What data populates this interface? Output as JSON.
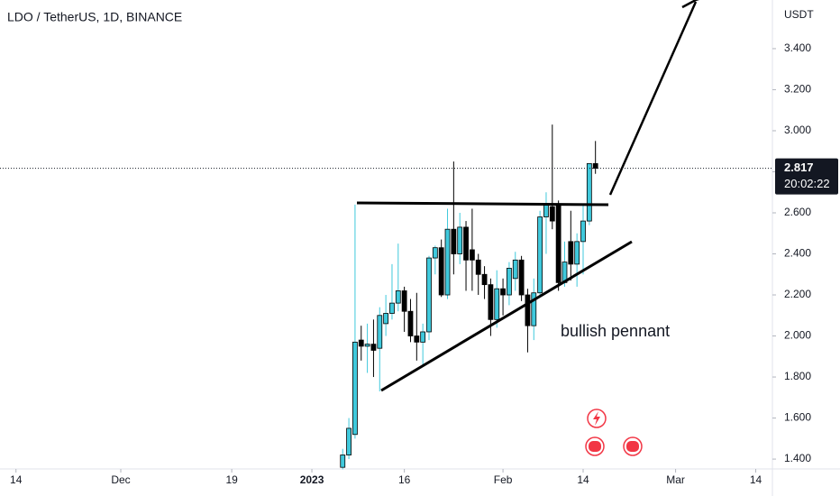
{
  "chart_data": {
    "type": "candlestick",
    "title": "LDO / TetherUS, 1D, BINANCE",
    "currency": "USDT",
    "annotation": "bullish pennant",
    "up_color": "#3fc9dc",
    "down_color": "#000000",
    "x": [
      "2023-01-06",
      "2023-01-07",
      "2023-01-08",
      "2023-01-09",
      "2023-01-10",
      "2023-01-11",
      "2023-01-12",
      "2023-01-13",
      "2023-01-14",
      "2023-01-15",
      "2023-01-16",
      "2023-01-17",
      "2023-01-18",
      "2023-01-19",
      "2023-01-20",
      "2023-01-21",
      "2023-01-22",
      "2023-01-23",
      "2023-01-24",
      "2023-01-25",
      "2023-01-26",
      "2023-01-27",
      "2023-01-28",
      "2023-01-29",
      "2023-01-30",
      "2023-01-31",
      "2023-02-01",
      "2023-02-02",
      "2023-02-03",
      "2023-02-04",
      "2023-02-05",
      "2023-02-06",
      "2023-02-07",
      "2023-02-08",
      "2023-02-09",
      "2023-02-10",
      "2023-02-11",
      "2023-02-12",
      "2023-02-13",
      "2023-02-14",
      "2023-02-15",
      "2023-02-16"
    ],
    "open": [
      1.36,
      1.42,
      1.52,
      1.98,
      1.95,
      1.96,
      1.94,
      2.06,
      2.11,
      2.16,
      2.22,
      2.12,
      2.0,
      1.97,
      2.02,
      2.38,
      2.43,
      2.2,
      2.52,
      2.4,
      2.53,
      2.42,
      2.37,
      2.3,
      2.25,
      2.08,
      2.23,
      2.2,
      2.28,
      2.37,
      2.2,
      2.05,
      2.21,
      2.58,
      2.63,
      2.64,
      2.26,
      2.46,
      2.35,
      2.46,
      2.56,
      2.84
    ],
    "high": [
      1.45,
      1.6,
      2.64,
      2.05,
      2.06,
      2.08,
      2.14,
      2.2,
      2.35,
      2.45,
      2.24,
      2.18,
      2.21,
      2.06,
      2.39,
      2.44,
      2.47,
      2.62,
      2.85,
      2.6,
      2.56,
      2.62,
      2.4,
      2.34,
      2.28,
      2.32,
      2.28,
      2.36,
      2.41,
      2.39,
      2.23,
      2.28,
      2.61,
      2.7,
      3.03,
      2.66,
      2.46,
      2.61,
      2.5,
      2.64,
      2.84,
      2.95
    ],
    "low": [
      1.35,
      1.4,
      1.5,
      1.88,
      1.82,
      1.8,
      1.73,
      2.0,
      2.08,
      2.12,
      2.02,
      1.97,
      1.88,
      1.86,
      1.98,
      2.3,
      2.19,
      2.18,
      2.3,
      2.35,
      2.22,
      2.22,
      2.2,
      2.18,
      2.0,
      2.04,
      2.1,
      2.15,
      2.22,
      2.17,
      1.92,
      1.98,
      2.2,
      2.4,
      2.52,
      2.22,
      2.24,
      2.27,
      2.24,
      2.3,
      2.54,
      2.79
    ],
    "close": [
      1.42,
      1.55,
      1.97,
      1.95,
      1.96,
      1.93,
      2.1,
      2.11,
      2.16,
      2.22,
      2.12,
      2.0,
      1.97,
      2.02,
      2.38,
      2.43,
      2.2,
      2.52,
      2.4,
      2.53,
      2.37,
      2.37,
      2.3,
      2.25,
      2.08,
      2.23,
      2.2,
      2.33,
      2.37,
      2.2,
      2.05,
      2.21,
      2.58,
      2.64,
      2.56,
      2.26,
      2.36,
      2.35,
      2.46,
      2.56,
      2.84,
      2.817
    ],
    "xlim": [
      "2022-11-11",
      "2023-03-16"
    ],
    "xticks": [
      {
        "value": "2022-11-14",
        "label": "14"
      },
      {
        "value": "2022-12-01",
        "label": "Dec"
      },
      {
        "value": "2022-12-19",
        "label": "19"
      },
      {
        "value": "2023-01-01",
        "label": "2023"
      },
      {
        "value": "2023-01-16",
        "label": "16"
      },
      {
        "value": "2023-02-01",
        "label": "Feb"
      },
      {
        "value": "2023-02-14",
        "label": "14"
      },
      {
        "value": "2023-03-01",
        "label": "Mar"
      },
      {
        "value": "2023-03-14",
        "label": "14"
      }
    ],
    "ylim": [
      1.352,
      3.637
    ],
    "yticks": [
      {
        "value": 1.4,
        "label": "1.400"
      },
      {
        "value": 1.6,
        "label": "1.600"
      },
      {
        "value": 1.8,
        "label": "1.800"
      },
      {
        "value": 2.0,
        "label": "2.000"
      },
      {
        "value": 2.2,
        "label": "2.200"
      },
      {
        "value": 2.4,
        "label": "2.400"
      },
      {
        "value": 2.6,
        "label": "2.600"
      },
      {
        "value": 2.8,
        "label": "2.800"
      },
      {
        "value": 3.0,
        "label": "3.000"
      },
      {
        "value": 3.2,
        "label": "3.200"
      },
      {
        "value": 3.4,
        "label": "3.400"
      }
    ],
    "last_price": 2.817,
    "countdown": "20:02:22"
  }
}
